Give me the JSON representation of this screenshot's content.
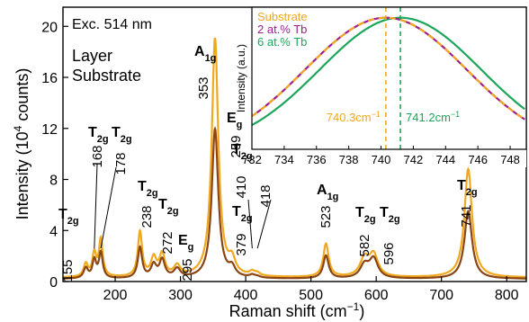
{
  "chart_data": [
    {
      "type": "line",
      "xlabel": "Raman shift (cm",
      "xlabel_sup": "−1",
      "xlabel_end": ")",
      "ylabel": "Intensity (10",
      "ylabel_sup": "4",
      "ylabel_end": " counts)",
      "xlim": [
        120,
        830
      ],
      "ylim": [
        0,
        21.5
      ],
      "xticks": [
        200,
        300,
        400,
        500,
        600,
        700,
        800
      ],
      "yticks": [
        0,
        4,
        8,
        12,
        16,
        20
      ],
      "annotation": "Exc. 514 nm",
      "legend": {
        "position": "top-left"
      },
      "series": [
        {
          "name": "Layer",
          "color": "#8B4513",
          "baseline": 0.2,
          "peaks": [
            [
              155,
              0.8,
              4
            ],
            [
              168,
              1.4,
              3.5
            ],
            [
              178,
              2.0,
              3.5
            ],
            [
              238,
              2.4,
              4
            ],
            [
              259,
              1.0,
              5
            ],
            [
              272,
              1.4,
              5
            ],
            [
              295,
              0.7,
              6
            ],
            [
              353,
              11.7,
              6
            ],
            [
              379,
              0.7,
              6
            ],
            [
              410,
              0.2,
              5
            ],
            [
              418,
              0.1,
              5
            ],
            [
              523,
              1.8,
              5
            ],
            [
              582,
              1.0,
              8
            ],
            [
              596,
              1.5,
              8
            ],
            [
              741,
              5.3,
              7
            ]
          ]
        },
        {
          "name": "Substrate",
          "color": "#F0A81E",
          "baseline": 0.3,
          "peaks": [
            [
              155,
              1.0,
              4
            ],
            [
              168,
              1.8,
              3.5
            ],
            [
              178,
              2.9,
              3.5
            ],
            [
              238,
              3.5,
              4
            ],
            [
              259,
              1.4,
              5
            ],
            [
              272,
              1.7,
              5
            ],
            [
              295,
              0.8,
              6
            ],
            [
              353,
              18.7,
              6
            ],
            [
              379,
              1.1,
              6
            ],
            [
              410,
              0.3,
              5
            ],
            [
              418,
              0.2,
              5
            ],
            [
              523,
              2.6,
              5
            ],
            [
              582,
              1.4,
              8
            ],
            [
              596,
              1.7,
              8
            ],
            [
              741,
              8.5,
              7
            ]
          ]
        }
      ],
      "peak_labels": [
        {
          "sym": "T",
          "sub": "2g",
          "pos": "155",
          "x": 155
        },
        {
          "sym": "T",
          "sub": "2g",
          "pos": "168",
          "x": 168
        },
        {
          "sym": "T",
          "sub": "2g",
          "pos": "178",
          "x": 178
        },
        {
          "sym": "T",
          "sub": "2g",
          "pos": "238",
          "x": 238
        },
        {
          "sym": "E",
          "sub": "g",
          "pos": "259",
          "x": 259
        },
        {
          "sym": "T",
          "sub": "2g",
          "pos": "272",
          "x": 272
        },
        {
          "sym": "E",
          "sub": "g",
          "pos": "295",
          "x": 295
        },
        {
          "sym": "A",
          "sub": "1g",
          "pos": "353",
          "x": 353
        },
        {
          "sym": "T",
          "sub": "2g",
          "pos": "379",
          "x": 379
        },
        {
          "sym": "T",
          "sub": "2g",
          "pos": "410",
          "x": 410
        },
        {
          "sym": "E",
          "sub": "g",
          "pos": "418",
          "x": 418
        },
        {
          "sym": "A",
          "sub": "1g",
          "pos": "523",
          "x": 523
        },
        {
          "sym": "T",
          "sub": "2g",
          "pos": "582",
          "x": 582
        },
        {
          "sym": "T",
          "sub": "2g",
          "pos": "596",
          "x": 596
        },
        {
          "sym": "T",
          "sub": "2g",
          "pos": "741",
          "x": 741
        }
      ]
    },
    {
      "type": "line",
      "ylabel": "Intensity (a.u.)",
      "xlim": [
        732,
        749
      ],
      "ylim": [
        0,
        1.08
      ],
      "xticks": [
        732,
        734,
        736,
        738,
        740,
        742,
        744,
        746,
        748
      ],
      "legend": {
        "position": "top-left"
      },
      "series": [
        {
          "name": "Substrate",
          "color": "#F0A81E",
          "center": 740.3,
          "sigma": 5.0,
          "dash": true
        },
        {
          "name": "2 at.% Tb",
          "color": "#9B1F8F",
          "center": 740.3,
          "sigma": 5.0,
          "dash": false
        },
        {
          "name": "6 at.% Tb",
          "color": "#1BA65A",
          "center": 741.2,
          "sigma": 5.0,
          "dash": false
        }
      ],
      "markers": [
        {
          "x": 740.3,
          "label": "740.3cm",
          "sup": "−1",
          "color": "#F0A81E"
        },
        {
          "x": 741.2,
          "label": "741.2cm",
          "sup": "−1",
          "color": "#1BA65A"
        }
      ]
    }
  ]
}
